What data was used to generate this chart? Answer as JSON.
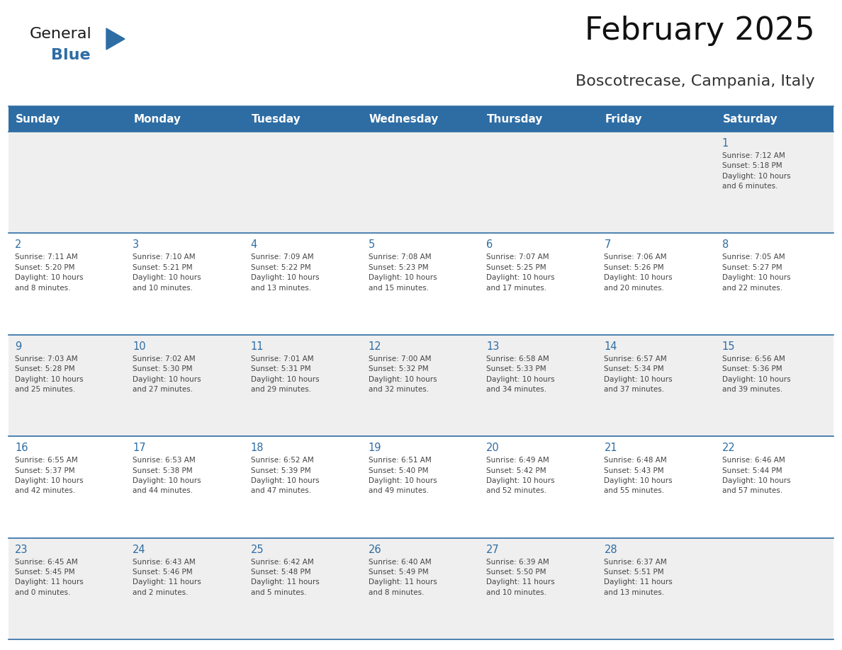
{
  "title": "February 2025",
  "subtitle": "Boscotrecase, Campania, Italy",
  "days_of_week": [
    "Sunday",
    "Monday",
    "Tuesday",
    "Wednesday",
    "Thursday",
    "Friday",
    "Saturday"
  ],
  "header_bg": "#2E6DA4",
  "header_text": "#FFFFFF",
  "cell_bg_odd": "#EFEFEF",
  "cell_bg_even": "#FFFFFF",
  "line_color": "#2E6DA4",
  "day_num_color": "#2E6DA4",
  "text_color": "#444444",
  "logo_general_color": "#1a1a1a",
  "logo_blue_color": "#2E6DA4",
  "calendar_data": [
    [
      {
        "day": null,
        "info": null
      },
      {
        "day": null,
        "info": null
      },
      {
        "day": null,
        "info": null
      },
      {
        "day": null,
        "info": null
      },
      {
        "day": null,
        "info": null
      },
      {
        "day": null,
        "info": null
      },
      {
        "day": 1,
        "info": "Sunrise: 7:12 AM\nSunset: 5:18 PM\nDaylight: 10 hours\nand 6 minutes."
      }
    ],
    [
      {
        "day": 2,
        "info": "Sunrise: 7:11 AM\nSunset: 5:20 PM\nDaylight: 10 hours\nand 8 minutes."
      },
      {
        "day": 3,
        "info": "Sunrise: 7:10 AM\nSunset: 5:21 PM\nDaylight: 10 hours\nand 10 minutes."
      },
      {
        "day": 4,
        "info": "Sunrise: 7:09 AM\nSunset: 5:22 PM\nDaylight: 10 hours\nand 13 minutes."
      },
      {
        "day": 5,
        "info": "Sunrise: 7:08 AM\nSunset: 5:23 PM\nDaylight: 10 hours\nand 15 minutes."
      },
      {
        "day": 6,
        "info": "Sunrise: 7:07 AM\nSunset: 5:25 PM\nDaylight: 10 hours\nand 17 minutes."
      },
      {
        "day": 7,
        "info": "Sunrise: 7:06 AM\nSunset: 5:26 PM\nDaylight: 10 hours\nand 20 minutes."
      },
      {
        "day": 8,
        "info": "Sunrise: 7:05 AM\nSunset: 5:27 PM\nDaylight: 10 hours\nand 22 minutes."
      }
    ],
    [
      {
        "day": 9,
        "info": "Sunrise: 7:03 AM\nSunset: 5:28 PM\nDaylight: 10 hours\nand 25 minutes."
      },
      {
        "day": 10,
        "info": "Sunrise: 7:02 AM\nSunset: 5:30 PM\nDaylight: 10 hours\nand 27 minutes."
      },
      {
        "day": 11,
        "info": "Sunrise: 7:01 AM\nSunset: 5:31 PM\nDaylight: 10 hours\nand 29 minutes."
      },
      {
        "day": 12,
        "info": "Sunrise: 7:00 AM\nSunset: 5:32 PM\nDaylight: 10 hours\nand 32 minutes."
      },
      {
        "day": 13,
        "info": "Sunrise: 6:58 AM\nSunset: 5:33 PM\nDaylight: 10 hours\nand 34 minutes."
      },
      {
        "day": 14,
        "info": "Sunrise: 6:57 AM\nSunset: 5:34 PM\nDaylight: 10 hours\nand 37 minutes."
      },
      {
        "day": 15,
        "info": "Sunrise: 6:56 AM\nSunset: 5:36 PM\nDaylight: 10 hours\nand 39 minutes."
      }
    ],
    [
      {
        "day": 16,
        "info": "Sunrise: 6:55 AM\nSunset: 5:37 PM\nDaylight: 10 hours\nand 42 minutes."
      },
      {
        "day": 17,
        "info": "Sunrise: 6:53 AM\nSunset: 5:38 PM\nDaylight: 10 hours\nand 44 minutes."
      },
      {
        "day": 18,
        "info": "Sunrise: 6:52 AM\nSunset: 5:39 PM\nDaylight: 10 hours\nand 47 minutes."
      },
      {
        "day": 19,
        "info": "Sunrise: 6:51 AM\nSunset: 5:40 PM\nDaylight: 10 hours\nand 49 minutes."
      },
      {
        "day": 20,
        "info": "Sunrise: 6:49 AM\nSunset: 5:42 PM\nDaylight: 10 hours\nand 52 minutes."
      },
      {
        "day": 21,
        "info": "Sunrise: 6:48 AM\nSunset: 5:43 PM\nDaylight: 10 hours\nand 55 minutes."
      },
      {
        "day": 22,
        "info": "Sunrise: 6:46 AM\nSunset: 5:44 PM\nDaylight: 10 hours\nand 57 minutes."
      }
    ],
    [
      {
        "day": 23,
        "info": "Sunrise: 6:45 AM\nSunset: 5:45 PM\nDaylight: 11 hours\nand 0 minutes."
      },
      {
        "day": 24,
        "info": "Sunrise: 6:43 AM\nSunset: 5:46 PM\nDaylight: 11 hours\nand 2 minutes."
      },
      {
        "day": 25,
        "info": "Sunrise: 6:42 AM\nSunset: 5:48 PM\nDaylight: 11 hours\nand 5 minutes."
      },
      {
        "day": 26,
        "info": "Sunrise: 6:40 AM\nSunset: 5:49 PM\nDaylight: 11 hours\nand 8 minutes."
      },
      {
        "day": 27,
        "info": "Sunrise: 6:39 AM\nSunset: 5:50 PM\nDaylight: 11 hours\nand 10 minutes."
      },
      {
        "day": 28,
        "info": "Sunrise: 6:37 AM\nSunset: 5:51 PM\nDaylight: 11 hours\nand 13 minutes."
      },
      {
        "day": null,
        "info": null
      }
    ]
  ]
}
